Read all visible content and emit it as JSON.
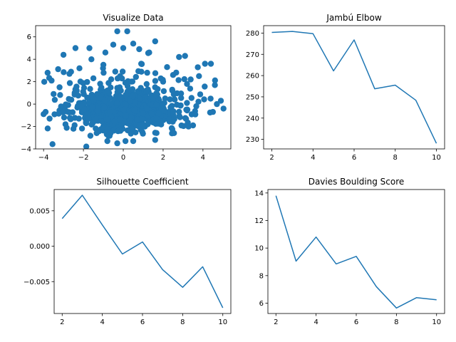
{
  "colors": {
    "series": "#1f77b4",
    "axis": "#000000"
  },
  "chart_data": [
    {
      "type": "scatter",
      "title": "Visualize Data",
      "xlabel": "",
      "ylabel": "",
      "xlim": [
        -4.4,
        5.4
      ],
      "ylim": [
        -4,
        7
      ],
      "xticks": [
        -4,
        -2,
        0,
        2,
        4
      ],
      "yticks": [
        -4,
        -2,
        0,
        2,
        4,
        6
      ],
      "grid": false,
      "cluster_note_points": [
        [
          -0.3,
          6.5
        ],
        [
          0.2,
          6.5
        ],
        [
          -0.5,
          5.3
        ],
        [
          0.5,
          5.4
        ],
        [
          1.6,
          5.6
        ],
        [
          -1.7,
          5.0
        ],
        [
          -2.4,
          5.0
        ],
        [
          0.8,
          4.9
        ],
        [
          -3.0,
          4.4
        ],
        [
          3.1,
          4.3
        ],
        [
          2.8,
          4.2
        ],
        [
          4.1,
          3.6
        ],
        [
          4.4,
          3.6
        ],
        [
          -3.8,
          2.8
        ],
        [
          -3.6,
          2.1
        ],
        [
          -2.7,
          2.7
        ],
        [
          -0.4,
          2.9
        ],
        [
          1.2,
          2.8
        ],
        [
          2.5,
          2.6
        ],
        [
          3.8,
          2.5
        ],
        [
          4.6,
          1.7
        ],
        [
          -3.5,
          0.9
        ],
        [
          -3.9,
          -0.7
        ],
        [
          -4.0,
          -0.9
        ],
        [
          -3.7,
          -1.3
        ],
        [
          -2.9,
          -1.8
        ],
        [
          -2.5,
          -2.2
        ],
        [
          4.7,
          0.0
        ],
        [
          4.9,
          0.3
        ],
        [
          4.5,
          -0.7
        ],
        [
          3.5,
          -1.9
        ],
        [
          -0.8,
          -3.3
        ],
        [
          -0.3,
          -3.5
        ],
        [
          0.5,
          -3.3
        ],
        [
          1.6,
          -3.2
        ],
        [
          -1.0,
          3.5
        ],
        [
          0.9,
          3.6
        ],
        [
          2.2,
          3.3
        ],
        [
          -1.6,
          4.0
        ],
        [
          -0.9,
          4.6
        ],
        [
          0.0,
          5.0
        ],
        [
          1.3,
          4.6
        ],
        [
          -2.2,
          3.2
        ],
        [
          3.2,
          1.8
        ],
        [
          -3.2,
          1.5
        ],
        [
          2.0,
          2.0
        ],
        [
          -1.5,
          2.3
        ],
        [
          0.4,
          2.0
        ]
      ]
    },
    {
      "type": "line",
      "title": "Jambú Elbow",
      "xlabel": "",
      "ylabel": "",
      "x": [
        2,
        3,
        4,
        5,
        6,
        7,
        8,
        9,
        10
      ],
      "y": [
        280.3,
        280.8,
        279.7,
        262.2,
        276.8,
        253.8,
        255.5,
        248.4,
        228.1
      ],
      "xlim": [
        1.6,
        10.4
      ],
      "ylim": [
        225.5,
        283.5
      ],
      "xticks": [
        2,
        4,
        6,
        8,
        10
      ],
      "yticks": [
        230,
        240,
        250,
        260,
        270,
        280
      ],
      "grid": false
    },
    {
      "type": "line",
      "title": "Silhouette Coefficient",
      "xlabel": "",
      "ylabel": "",
      "x": [
        2,
        3,
        4,
        5,
        6,
        7,
        8,
        9,
        10
      ],
      "y": [
        0.0039,
        0.0072,
        0.003,
        -0.0011,
        0.0006,
        -0.0033,
        -0.0058,
        -0.0029,
        -0.0087
      ],
      "xlim": [
        1.6,
        10.4
      ],
      "ylim": [
        -0.0095,
        0.008
      ],
      "xticks": [
        2,
        4,
        6,
        8,
        10
      ],
      "yticks": [
        -0.005,
        0.0,
        0.005
      ],
      "ytick_labels": [
        "−0.005",
        "0.000",
        "0.005"
      ],
      "grid": false
    },
    {
      "type": "line",
      "title": "Davies Boulding Score",
      "xlabel": "",
      "ylabel": "",
      "x": [
        2,
        3,
        4,
        5,
        6,
        7,
        8,
        9,
        10
      ],
      "y": [
        13.8,
        9.05,
        10.8,
        8.85,
        9.4,
        7.2,
        5.65,
        6.4,
        6.25
      ],
      "xlim": [
        1.6,
        10.4
      ],
      "ylim": [
        5.25,
        14.25
      ],
      "xticks": [
        2,
        4,
        6,
        8,
        10
      ],
      "yticks": [
        6,
        8,
        10,
        12,
        14
      ],
      "grid": false
    }
  ]
}
